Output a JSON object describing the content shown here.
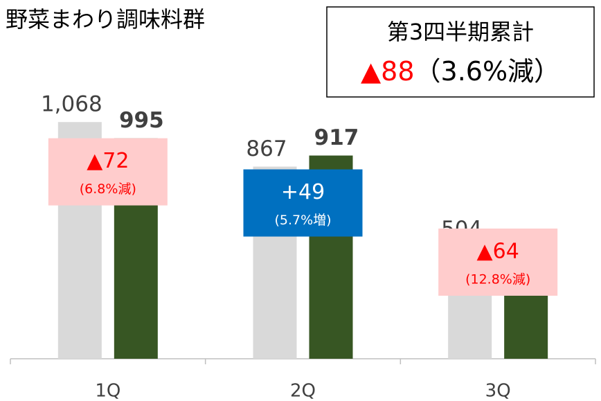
{
  "chart_data": {
    "type": "bar",
    "title": "野菜まわり調味料群",
    "categories": [
      "1Q",
      "2Q",
      "3Q"
    ],
    "series": [
      {
        "color": "#d9d9d9",
        "values": [
          1068,
          867,
          504
        ],
        "value_labels": [
          "1,068",
          "867",
          "504"
        ]
      },
      {
        "color": "#375623",
        "values": [
          995,
          917,
          439
        ]
      }
    ],
    "annotations": [
      {
        "change": "▲72",
        "pct": "(6.8%減)"
      },
      {
        "change": "+49",
        "pct": "(5.7%増)"
      },
      {
        "change": "▲64",
        "pct": "(12.8%減)"
      }
    ],
    "summary": {
      "label": "第3四半期累計",
      "change": "▲88",
      "pct": "（3.6%減）"
    }
  }
}
